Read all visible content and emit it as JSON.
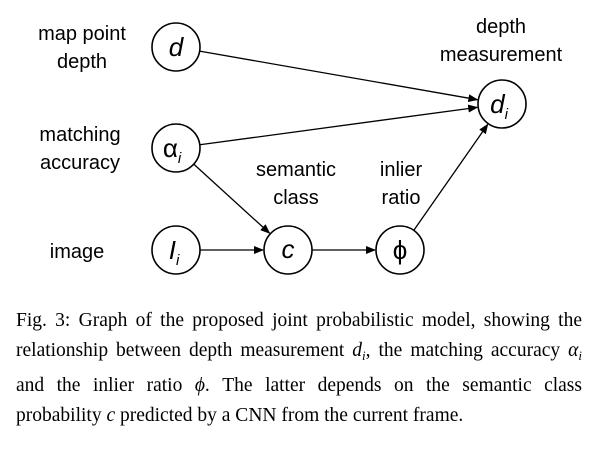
{
  "labels": {
    "map_point_depth_1": "map point",
    "map_point_depth_2": "depth",
    "matching_accuracy_1": "matching",
    "matching_accuracy_2": "accuracy",
    "image": "image",
    "semantic_class_1": "semantic",
    "semantic_class_2": "class",
    "inlier_ratio_1": "inlier",
    "inlier_ratio_2": "ratio",
    "depth_measurement_1": "depth",
    "depth_measurement_2": "measurement"
  },
  "nodes": {
    "d": {
      "symbol": "d",
      "sub": ""
    },
    "alpha": {
      "symbol": "α",
      "sub": "i"
    },
    "I": {
      "symbol": "I",
      "sub": "i"
    },
    "c": {
      "symbol": "c",
      "sub": ""
    },
    "phi": {
      "symbol": "ϕ",
      "sub": ""
    },
    "di": {
      "symbol": "d",
      "sub": "i"
    }
  },
  "edges": [
    {
      "from": "d",
      "to": "di"
    },
    {
      "from": "alpha",
      "to": "di"
    },
    {
      "from": "alpha",
      "to": "c"
    },
    {
      "from": "I",
      "to": "c"
    },
    {
      "from": "c",
      "to": "phi"
    },
    {
      "from": "phi",
      "to": "di"
    }
  ],
  "caption": {
    "p1": "Fig. 3: Graph of the proposed joint probabilistic model, showing the relationship between depth measurement ",
    "d": "d",
    "d_sub": "i",
    "p2": ", the matching accuracy ",
    "alpha": "α",
    "alpha_sub": "i",
    "p3": " and the inlier ratio ",
    "phi": "ϕ",
    "p4": ". The latter depends on the semantic class probability ",
    "c": "c",
    "p5": " predicted by a CNN from the current frame."
  }
}
